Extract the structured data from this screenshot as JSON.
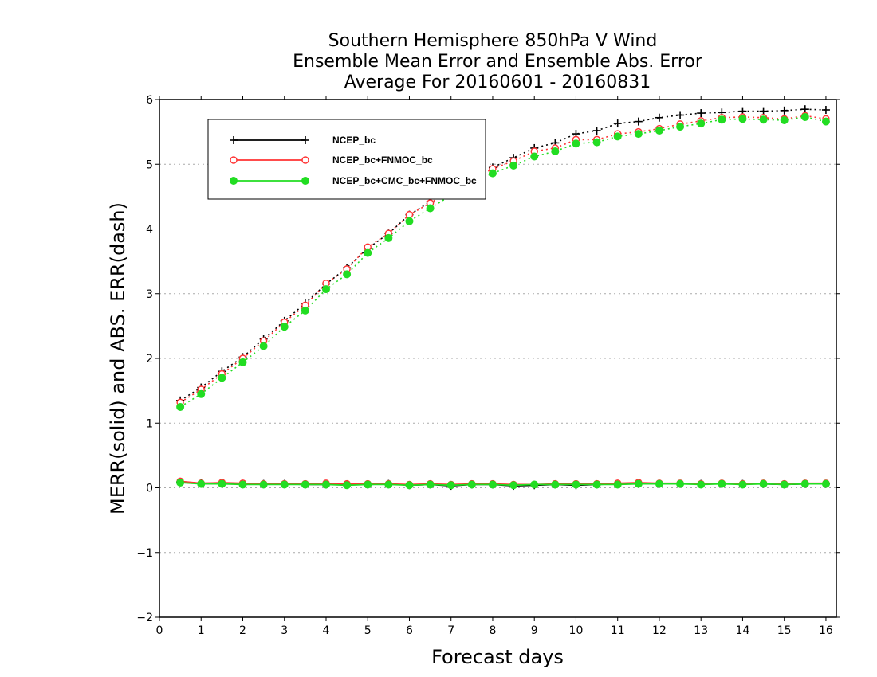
{
  "chart_data": {
    "type": "line",
    "title": [
      "Southern Hemisphere 850hPa V Wind",
      "Ensemble Mean Error and Ensemble Abs. Error",
      "Average For 20160601 - 20160831"
    ],
    "xlabel": "Forecast days",
    "ylabel": "MERR(solid) and ABS. ERR(dash)",
    "xlim": [
      0,
      16.25
    ],
    "ylim": [
      -2,
      6
    ],
    "xticks": [
      0,
      1,
      2,
      3,
      4,
      5,
      6,
      7,
      8,
      9,
      10,
      11,
      12,
      13,
      14,
      15,
      16
    ],
    "yticks": [
      -2,
      -1,
      0,
      1,
      2,
      3,
      4,
      5,
      6
    ],
    "grid": "horizontal dotted",
    "legend_position": "top-left",
    "x": [
      0.5,
      1,
      1.5,
      2,
      2.5,
      3,
      3.5,
      4,
      4.5,
      5,
      5.5,
      6,
      6.5,
      7,
      7.5,
      8,
      8.5,
      9,
      9.5,
      10,
      10.5,
      11,
      11.5,
      12,
      12.5,
      13,
      13.5,
      14,
      14.5,
      15,
      15.5,
      16
    ],
    "series": [
      {
        "name": "NCEP_bc",
        "color": "#000000",
        "marker": "plus",
        "abs_error": [
          1.35,
          1.55,
          1.8,
          2.02,
          2.3,
          2.58,
          2.85,
          3.15,
          3.4,
          3.7,
          3.93,
          4.22,
          4.42,
          4.62,
          4.8,
          4.95,
          5.1,
          5.25,
          5.33,
          5.47,
          5.52,
          5.63,
          5.66,
          5.72,
          5.76,
          5.79,
          5.8,
          5.82,
          5.82,
          5.83,
          5.85,
          5.84
        ],
        "mean_error": [
          0.09,
          0.07,
          0.07,
          0.06,
          0.06,
          0.06,
          0.05,
          0.05,
          0.05,
          0.05,
          0.06,
          0.04,
          0.05,
          0.03,
          0.05,
          0.05,
          0.03,
          0.04,
          0.05,
          0.04,
          0.05,
          0.06,
          0.07,
          0.06,
          0.06,
          0.06,
          0.06,
          0.06,
          0.06,
          0.05,
          0.06,
          0.06
        ]
      },
      {
        "name": "NCEP_bc+FNMOC_bc",
        "color": "#ff3333",
        "marker": "open-circle",
        "abs_error": [
          1.32,
          1.52,
          1.76,
          2.0,
          2.27,
          2.56,
          2.82,
          3.16,
          3.38,
          3.72,
          3.93,
          4.22,
          4.4,
          4.6,
          4.76,
          4.93,
          5.05,
          5.2,
          5.25,
          5.38,
          5.38,
          5.47,
          5.5,
          5.55,
          5.62,
          5.67,
          5.72,
          5.73,
          5.72,
          5.7,
          5.75,
          5.7
        ],
        "mean_error": [
          0.1,
          0.07,
          0.08,
          0.07,
          0.06,
          0.06,
          0.06,
          0.07,
          0.06,
          0.06,
          0.06,
          0.05,
          0.06,
          0.05,
          0.06,
          0.06,
          0.05,
          0.05,
          0.06,
          0.06,
          0.06,
          0.07,
          0.08,
          0.07,
          0.07,
          0.06,
          0.07,
          0.06,
          0.07,
          0.06,
          0.07,
          0.07
        ]
      },
      {
        "name": "NCEP_bc+CMC_bc+FNMOC_bc",
        "color": "#22dd22",
        "marker": "filled-circle",
        "abs_error": [
          1.25,
          1.45,
          1.7,
          1.94,
          2.19,
          2.49,
          2.74,
          3.07,
          3.3,
          3.63,
          3.86,
          4.12,
          4.32,
          4.52,
          4.7,
          4.86,
          4.98,
          5.12,
          5.2,
          5.32,
          5.34,
          5.43,
          5.47,
          5.52,
          5.58,
          5.63,
          5.69,
          5.7,
          5.69,
          5.68,
          5.73,
          5.66
        ],
        "mean_error": [
          0.08,
          0.06,
          0.06,
          0.05,
          0.05,
          0.05,
          0.05,
          0.05,
          0.04,
          0.05,
          0.05,
          0.04,
          0.05,
          0.04,
          0.05,
          0.05,
          0.04,
          0.05,
          0.05,
          0.05,
          0.05,
          0.05,
          0.06,
          0.06,
          0.06,
          0.05,
          0.06,
          0.05,
          0.06,
          0.05,
          0.06,
          0.06
        ]
      }
    ]
  }
}
